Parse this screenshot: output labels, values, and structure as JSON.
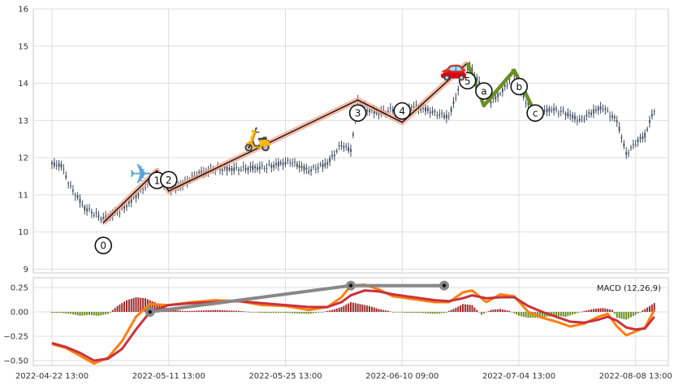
{
  "chart_data": [
    {
      "type": "candlestick",
      "x_ticks": [
        "2022-04-22 13:00",
        "2022-05-11 13:00",
        "2022-05-25 13:00",
        "2022-06-10 09:00",
        "2022-07-04 13:00",
        "2022-08-08 13:00"
      ],
      "x_index_range": [
        -8,
        264
      ],
      "ylim": [
        8.9,
        16
      ],
      "y_ticks": [
        "9",
        "10",
        "11",
        "12",
        "13",
        "14",
        "15",
        "16"
      ],
      "grid": true,
      "price_series": [
        [
          0,
          11.82
        ],
        [
          4,
          11.8
        ],
        [
          8,
          11.2
        ],
        [
          14,
          10.65
        ],
        [
          22,
          10.35
        ],
        [
          30,
          10.6
        ],
        [
          38,
          11.1
        ],
        [
          45,
          11.55
        ],
        [
          50,
          11.15
        ],
        [
          55,
          11.25
        ],
        [
          62,
          11.55
        ],
        [
          70,
          11.7
        ],
        [
          80,
          11.7
        ],
        [
          92,
          11.75
        ],
        [
          102,
          11.9
        ],
        [
          110,
          11.65
        ],
        [
          118,
          11.85
        ],
        [
          124,
          12.35
        ],
        [
          128,
          12.2
        ],
        [
          131,
          13.5
        ],
        [
          135,
          13.3
        ],
        [
          140,
          13.2
        ],
        [
          146,
          13.3
        ],
        [
          150,
          13.05
        ],
        [
          154,
          13.4
        ],
        [
          160,
          13.3
        ],
        [
          164,
          13.2
        ],
        [
          170,
          13.1
        ],
        [
          175,
          14.0
        ],
        [
          179,
          14.45
        ],
        [
          183,
          14.0
        ],
        [
          188,
          13.5
        ],
        [
          193,
          13.8
        ],
        [
          198,
          14.3
        ],
        [
          203,
          13.5
        ],
        [
          208,
          13.2
        ],
        [
          214,
          13.3
        ],
        [
          220,
          13.2
        ],
        [
          226,
          13.0
        ],
        [
          232,
          13.25
        ],
        [
          236,
          13.35
        ],
        [
          240,
          13.1
        ],
        [
          242,
          13.0
        ],
        [
          246,
          12.1
        ],
        [
          250,
          12.4
        ],
        [
          254,
          12.6
        ],
        [
          258,
          13.3
        ]
      ],
      "waves": [
        {
          "label": "0",
          "x": 22,
          "y": 10.25
        },
        {
          "label": "1",
          "x": 45,
          "y": 11.65
        },
        {
          "label": "2",
          "x": 50,
          "y": 11.1
        },
        {
          "label": "3",
          "x": 131,
          "y": 13.55
        },
        {
          "label": "4",
          "x": 150,
          "y": 12.95
        },
        {
          "label": "5",
          "x": 178,
          "y": 14.55
        },
        {
          "label": "a",
          "x": 185,
          "y": 13.4
        },
        {
          "label": "b",
          "x": 198,
          "y": 14.35
        },
        {
          "label": "c",
          "x": 207,
          "y": 13.2
        }
      ],
      "vehicle_icons": [
        "airplane",
        "scooter",
        "car"
      ]
    },
    {
      "type": "macd",
      "legend": "MACD (12,26,9)",
      "ylim": [
        -0.55,
        0.35
      ],
      "y_ticks": [
        "0.25",
        "0.00",
        "−0.25",
        "−0.50"
      ],
      "grid": true,
      "macd_line": [
        [
          0,
          -0.33
        ],
        [
          6,
          -0.37
        ],
        [
          12,
          -0.45
        ],
        [
          18,
          -0.53
        ],
        [
          24,
          -0.47
        ],
        [
          30,
          -0.3
        ],
        [
          36,
          -0.05
        ],
        [
          42,
          0.08
        ],
        [
          50,
          0.07
        ],
        [
          60,
          0.1
        ],
        [
          70,
          0.12
        ],
        [
          80,
          0.11
        ],
        [
          90,
          0.07
        ],
        [
          100,
          0.06
        ],
        [
          110,
          0.02
        ],
        [
          118,
          0.05
        ],
        [
          124,
          0.15
        ],
        [
          128,
          0.27
        ],
        [
          134,
          0.28
        ],
        [
          140,
          0.23
        ],
        [
          146,
          0.16
        ],
        [
          152,
          0.14
        ],
        [
          158,
          0.12
        ],
        [
          164,
          0.1
        ],
        [
          170,
          0.1
        ],
        [
          176,
          0.2
        ],
        [
          180,
          0.22
        ],
        [
          186,
          0.1
        ],
        [
          192,
          0.18
        ],
        [
          198,
          0.16
        ],
        [
          204,
          0.0
        ],
        [
          210,
          -0.06
        ],
        [
          216,
          -0.1
        ],
        [
          222,
          -0.15
        ],
        [
          228,
          -0.12
        ],
        [
          234,
          -0.05
        ],
        [
          238,
          -0.02
        ],
        [
          242,
          -0.15
        ],
        [
          246,
          -0.24
        ],
        [
          250,
          -0.2
        ],
        [
          254,
          -0.16
        ],
        [
          258,
          0.02
        ]
      ],
      "signal_line": [
        [
          0,
          -0.32
        ],
        [
          6,
          -0.36
        ],
        [
          12,
          -0.42
        ],
        [
          18,
          -0.5
        ],
        [
          24,
          -0.48
        ],
        [
          30,
          -0.38
        ],
        [
          36,
          -0.18
        ],
        [
          42,
          0.0
        ],
        [
          50,
          0.07
        ],
        [
          60,
          0.09
        ],
        [
          70,
          0.1
        ],
        [
          80,
          0.11
        ],
        [
          90,
          0.09
        ],
        [
          100,
          0.07
        ],
        [
          110,
          0.05
        ],
        [
          118,
          0.05
        ],
        [
          124,
          0.1
        ],
        [
          128,
          0.17
        ],
        [
          134,
          0.22
        ],
        [
          140,
          0.21
        ],
        [
          146,
          0.18
        ],
        [
          152,
          0.16
        ],
        [
          158,
          0.14
        ],
        [
          164,
          0.12
        ],
        [
          170,
          0.11
        ],
        [
          176,
          0.14
        ],
        [
          180,
          0.17
        ],
        [
          186,
          0.14
        ],
        [
          192,
          0.15
        ],
        [
          198,
          0.15
        ],
        [
          204,
          0.06
        ],
        [
          210,
          0.0
        ],
        [
          216,
          -0.05
        ],
        [
          222,
          -0.1
        ],
        [
          228,
          -0.11
        ],
        [
          234,
          -0.08
        ],
        [
          238,
          -0.05
        ],
        [
          242,
          -0.09
        ],
        [
          246,
          -0.16
        ],
        [
          250,
          -0.18
        ],
        [
          254,
          -0.17
        ],
        [
          258,
          -0.05
        ]
      ],
      "histogram": [
        [
          0,
          -0.01
        ],
        [
          4,
          -0.01
        ],
        [
          8,
          -0.02
        ],
        [
          12,
          -0.04
        ],
        [
          16,
          -0.03
        ],
        [
          20,
          -0.04
        ],
        [
          24,
          -0.02
        ],
        [
          28,
          0.06
        ],
        [
          32,
          0.12
        ],
        [
          36,
          0.15
        ],
        [
          40,
          0.14
        ],
        [
          44,
          0.1
        ],
        [
          48,
          0.05
        ],
        [
          52,
          0.02
        ],
        [
          56,
          0.01
        ],
        [
          60,
          0.01
        ],
        [
          70,
          0.02
        ],
        [
          80,
          0.01
        ],
        [
          90,
          -0.01
        ],
        [
          100,
          -0.01
        ],
        [
          110,
          -0.02
        ],
        [
          116,
          0.0
        ],
        [
          120,
          0.02
        ],
        [
          124,
          0.05
        ],
        [
          128,
          0.1
        ],
        [
          132,
          0.08
        ],
        [
          136,
          0.06
        ],
        [
          140,
          0.03
        ],
        [
          146,
          0.0
        ],
        [
          152,
          -0.01
        ],
        [
          158,
          -0.01
        ],
        [
          164,
          -0.02
        ],
        [
          168,
          -0.01
        ],
        [
          172,
          0.03
        ],
        [
          176,
          0.08
        ],
        [
          180,
          0.07
        ],
        [
          184,
          -0.03
        ],
        [
          188,
          0.02
        ],
        [
          192,
          0.03
        ],
        [
          196,
          0.01
        ],
        [
          200,
          -0.04
        ],
        [
          204,
          -0.06
        ],
        [
          208,
          -0.06
        ],
        [
          212,
          -0.05
        ],
        [
          216,
          -0.04
        ],
        [
          220,
          -0.05
        ],
        [
          224,
          -0.02
        ],
        [
          228,
          0.01
        ],
        [
          232,
          0.03
        ],
        [
          236,
          0.04
        ],
        [
          240,
          0.02
        ],
        [
          242,
          -0.06
        ],
        [
          246,
          -0.08
        ],
        [
          250,
          -0.03
        ],
        [
          254,
          0.03
        ],
        [
          258,
          0.09
        ]
      ],
      "gray_line": [
        [
          42,
          0.0
        ],
        [
          128,
          0.27
        ],
        [
          168,
          0.27
        ]
      ]
    }
  ]
}
